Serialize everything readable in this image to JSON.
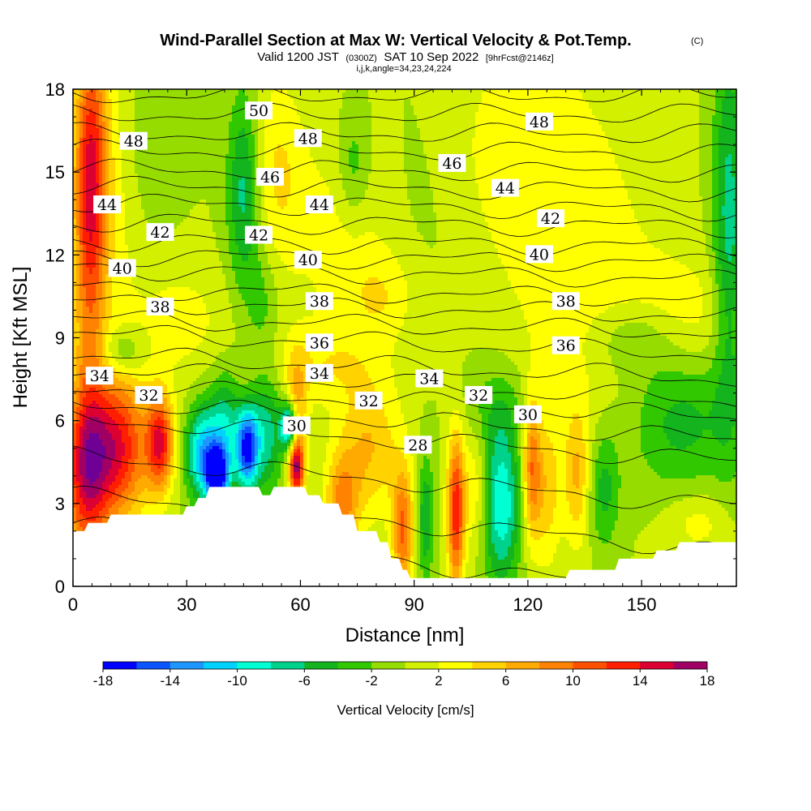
{
  "header": {
    "title": "Wind-Parallel Section at Max W: Vertical Velocity & Pot.Temp.",
    "copyright": "(C)",
    "valid_prefix": "Valid 1200 JST",
    "valid_utc": "(0300Z)",
    "valid_date": "SAT 10 Sep 2022",
    "forecast": "[9hrFcst@2146z]",
    "indices": "i,j,k,angle=34,23,24,224"
  },
  "chart_data": {
    "type": "heatmap",
    "title": "Wind-Parallel Section at Max W: Vertical Velocity & Pot.Temp.",
    "xlabel": "Distance [nm]",
    "ylabel": "Height [Kft MSL]",
    "xlim": [
      0,
      175
    ],
    "ylim": [
      0,
      18
    ],
    "x_ticks": [
      "0",
      "30",
      "60",
      "90",
      "120",
      "150"
    ],
    "x_tick_values": [
      0,
      30,
      60,
      90,
      120,
      150
    ],
    "y_ticks": [
      "0",
      "3",
      "6",
      "9",
      "12",
      "15",
      "18"
    ],
    "y_tick_values": [
      0,
      3,
      6,
      9,
      12,
      15,
      18
    ],
    "colorbar": {
      "label": "Vertical Velocity [cm/s]",
      "tick_labels": [
        "-18",
        "-14",
        "-10",
        "-6",
        "-2",
        "2",
        "6",
        "10",
        "14",
        "18"
      ],
      "levels": [
        -18,
        -16,
        -14,
        -12,
        -10,
        -8,
        -6,
        -4,
        -2,
        0,
        2,
        4,
        6,
        8,
        10,
        12,
        14,
        16,
        18
      ],
      "colors": [
        "#0000ff",
        "#0a55ff",
        "#1e96ff",
        "#00d2ff",
        "#00ffd2",
        "#00d28c",
        "#14b41e",
        "#32c800",
        "#96dc00",
        "#d2f000",
        "#ffff00",
        "#ffd200",
        "#ffaa00",
        "#ff8200",
        "#ff5000",
        "#ff1e00",
        "#dc0032",
        "#a00064",
        "#6e0096"
      ]
    },
    "background_w": 0,
    "w_cells": [
      {
        "x": 4,
        "z": 11,
        "sx": 3,
        "sz": 7,
        "w": 6
      },
      {
        "x": 5,
        "z": 15,
        "sx": 3,
        "sz": 3,
        "w": 9
      },
      {
        "x": 10,
        "z": 12,
        "sx": 6,
        "sz": 6,
        "w": 3
      },
      {
        "x": 13,
        "z": 8.5,
        "sx": 4,
        "sz": 0.6,
        "w": -5
      },
      {
        "x": 20,
        "z": 16,
        "sx": 5,
        "sz": 2,
        "w": -2
      },
      {
        "x": 12,
        "z": 5,
        "sx": 6,
        "sz": 1.8,
        "w": 12
      },
      {
        "x": 3,
        "z": 4,
        "sx": 5,
        "sz": 2,
        "w": 10
      },
      {
        "x": 23,
        "z": 5.2,
        "sx": 2.5,
        "sz": 1.2,
        "w": 13
      },
      {
        "x": 27,
        "z": 9.6,
        "sx": 10,
        "sz": 1.5,
        "w": 3
      },
      {
        "x": 34,
        "z": 4.8,
        "sx": 3,
        "sz": 1.2,
        "w": -11
      },
      {
        "x": 38,
        "z": 4,
        "sx": 2,
        "sz": 0.7,
        "w": -17
      },
      {
        "x": 40,
        "z": 5.5,
        "sx": 3,
        "sz": 1.5,
        "w": -8
      },
      {
        "x": 46,
        "z": 5,
        "sx": 2,
        "sz": 1,
        "w": -16
      },
      {
        "x": 51,
        "z": 5.5,
        "sx": 3,
        "sz": 1.5,
        "w": -7
      },
      {
        "x": 57,
        "z": 5.8,
        "sx": 1.6,
        "sz": 0.6,
        "w": -14
      },
      {
        "x": 59,
        "z": 4.3,
        "sx": 1.4,
        "sz": 0.8,
        "w": 16
      },
      {
        "x": 59,
        "z": 6.5,
        "sx": 2,
        "sz": 1.3,
        "w": 6
      },
      {
        "x": 45,
        "z": 14.3,
        "sx": 3,
        "sz": 2.5,
        "w": -7
      },
      {
        "x": 50,
        "z": 10.3,
        "sx": 3,
        "sz": 1.5,
        "w": -3
      },
      {
        "x": 54,
        "z": 15,
        "sx": 5,
        "sz": 2.5,
        "w": 4
      },
      {
        "x": 72,
        "z": 12.6,
        "sx": 10,
        "sz": 3,
        "w": 3
      },
      {
        "x": 74,
        "z": 15.2,
        "sx": 3,
        "sz": 1.5,
        "w": -4
      },
      {
        "x": 82,
        "z": 10.5,
        "sx": 6,
        "sz": 1.2,
        "w": 3
      },
      {
        "x": 78,
        "z": 5,
        "sx": 6,
        "sz": 1.8,
        "w": 6
      },
      {
        "x": 71,
        "z": 3,
        "sx": 3,
        "sz": 1.2,
        "w": 8
      },
      {
        "x": 87,
        "z": 2,
        "sx": 2,
        "sz": 1.6,
        "w": 10
      },
      {
        "x": 93,
        "z": 2.5,
        "sx": 1.5,
        "sz": 1.6,
        "w": -6
      },
      {
        "x": 101,
        "z": 2.7,
        "sx": 1.6,
        "sz": 2,
        "w": 13
      },
      {
        "x": 106,
        "z": 3.5,
        "sx": 2.5,
        "sz": 1.5,
        "w": 4
      },
      {
        "x": 113,
        "z": 3,
        "sx": 3.5,
        "sz": 2,
        "w": -10
      },
      {
        "x": 112,
        "z": 6.5,
        "sx": 6,
        "sz": 1.2,
        "w": -3
      },
      {
        "x": 121,
        "z": 4.3,
        "sx": 1.6,
        "sz": 1.8,
        "w": 9
      },
      {
        "x": 125,
        "z": 3.5,
        "sx": 2.5,
        "sz": 2,
        "w": 5
      },
      {
        "x": 133,
        "z": 4,
        "sx": 2.5,
        "sz": 1.8,
        "w": 6
      },
      {
        "x": 140,
        "z": 3.5,
        "sx": 3,
        "sz": 1.5,
        "w": -5
      },
      {
        "x": 165,
        "z": 2.3,
        "sx": 6,
        "sz": 0.8,
        "w": 3
      },
      {
        "x": 160,
        "z": 6,
        "sx": 10,
        "sz": 1.8,
        "w": -5
      },
      {
        "x": 148,
        "z": 9,
        "sx": 8,
        "sz": 1,
        "w": -4
      },
      {
        "x": 135,
        "z": 11,
        "sx": 15,
        "sz": 4,
        "w": 3
      },
      {
        "x": 118,
        "z": 16,
        "sx": 14,
        "sz": 3,
        "w": 3
      },
      {
        "x": 173,
        "z": 13,
        "sx": 3,
        "sz": 5,
        "w": -7
      },
      {
        "x": 160,
        "z": 9.8,
        "sx": 12,
        "sz": 1.5,
        "w": 3
      },
      {
        "x": 90,
        "z": 14,
        "sx": 10,
        "sz": 3,
        "w": -1
      },
      {
        "x": 15,
        "z": 10,
        "sx": 6,
        "sz": 2,
        "w": -1
      },
      {
        "x": 65,
        "z": 8,
        "sx": 10,
        "sz": 1,
        "w": 3
      }
    ],
    "terrain": [
      [
        0,
        2
      ],
      [
        3,
        2
      ],
      [
        4,
        2.3
      ],
      [
        9,
        2.3
      ],
      [
        10,
        2.6
      ],
      [
        29,
        2.6
      ],
      [
        30,
        2.9
      ],
      [
        32,
        2.9
      ],
      [
        33,
        3.2
      ],
      [
        35,
        3.2
      ],
      [
        36,
        3.6
      ],
      [
        49,
        3.6
      ],
      [
        50,
        3.3
      ],
      [
        52,
        3.3
      ],
      [
        53,
        3.6
      ],
      [
        61,
        3.6
      ],
      [
        62,
        3.3
      ],
      [
        65,
        3.3
      ],
      [
        66,
        3
      ],
      [
        70,
        3
      ],
      [
        71,
        2.6
      ],
      [
        74,
        2.6
      ],
      [
        75,
        2
      ],
      [
        80,
        2
      ],
      [
        81,
        1.6
      ],
      [
        83,
        1.6
      ],
      [
        84,
        1
      ],
      [
        86,
        1
      ],
      [
        87,
        0.6
      ],
      [
        88,
        0.6
      ],
      [
        89,
        0.3
      ],
      [
        130,
        0.3
      ],
      [
        131,
        0.6
      ],
      [
        143,
        0.6
      ],
      [
        144,
        1
      ],
      [
        153,
        1
      ],
      [
        154,
        1.3
      ],
      [
        159,
        1.3
      ],
      [
        160,
        1.6
      ],
      [
        175,
        1.6
      ]
    ],
    "theta_contours": {
      "levels": [
        28,
        29,
        30,
        31,
        32,
        33,
        34,
        35,
        36,
        37,
        38,
        39,
        40,
        41,
        42,
        43,
        44,
        45,
        46,
        47,
        48,
        49,
        50,
        51
      ],
      "heights_at_x0": [
        2.3,
        3.3,
        4.7,
        6.1,
        6.7,
        7.3,
        7.9,
        8.4,
        9.2,
        9.7,
        10.3,
        10.8,
        11.5,
        12,
        12.5,
        13.2,
        13.9,
        14.5,
        15.1,
        15.8,
        16.4,
        17.1,
        17.8,
        18.4
      ],
      "heights_at_x175": [
        -0.5,
        1.3,
        2.9,
        4.5,
        5.3,
        6.1,
        6.7,
        7.5,
        8.4,
        9.2,
        9.8,
        10.4,
        11.1,
        11.7,
        12.3,
        13,
        13.6,
        14.3,
        15,
        15.7,
        16.4,
        17.1,
        17.8,
        18.5
      ]
    },
    "contour_labels": [
      {
        "text": "50",
        "x": 49,
        "z": 17.2
      },
      {
        "text": "48",
        "x": 16,
        "z": 16.1
      },
      {
        "text": "48",
        "x": 62,
        "z": 16.2
      },
      {
        "text": "48",
        "x": 123,
        "z": 16.8
      },
      {
        "text": "46",
        "x": 52,
        "z": 14.8
      },
      {
        "text": "46",
        "x": 100,
        "z": 15.3
      },
      {
        "text": "44",
        "x": 9,
        "z": 13.8
      },
      {
        "text": "44",
        "x": 65,
        "z": 13.8
      },
      {
        "text": "44",
        "x": 114,
        "z": 14.4
      },
      {
        "text": "42",
        "x": 23,
        "z": 12.8
      },
      {
        "text": "42",
        "x": 49,
        "z": 12.7
      },
      {
        "text": "42",
        "x": 126,
        "z": 13.3
      },
      {
        "text": "40",
        "x": 13,
        "z": 11.5
      },
      {
        "text": "40",
        "x": 62,
        "z": 11.8
      },
      {
        "text": "40",
        "x": 123,
        "z": 12
      },
      {
        "text": "38",
        "x": 23,
        "z": 10.1
      },
      {
        "text": "38",
        "x": 65,
        "z": 10.3
      },
      {
        "text": "38",
        "x": 130,
        "z": 10.3
      },
      {
        "text": "36",
        "x": 65,
        "z": 8.8
      },
      {
        "text": "36",
        "x": 130,
        "z": 8.7
      },
      {
        "text": "34",
        "x": 7,
        "z": 7.6
      },
      {
        "text": "34",
        "x": 65,
        "z": 7.7
      },
      {
        "text": "34",
        "x": 94,
        "z": 7.5
      },
      {
        "text": "32",
        "x": 20,
        "z": 6.9
      },
      {
        "text": "32",
        "x": 78,
        "z": 6.7
      },
      {
        "text": "32",
        "x": 107,
        "z": 6.9
      },
      {
        "text": "30",
        "x": 59,
        "z": 5.8
      },
      {
        "text": "30",
        "x": 120,
        "z": 6.2
      },
      {
        "text": "28",
        "x": 91,
        "z": 5.1
      }
    ],
    "grid": false
  }
}
